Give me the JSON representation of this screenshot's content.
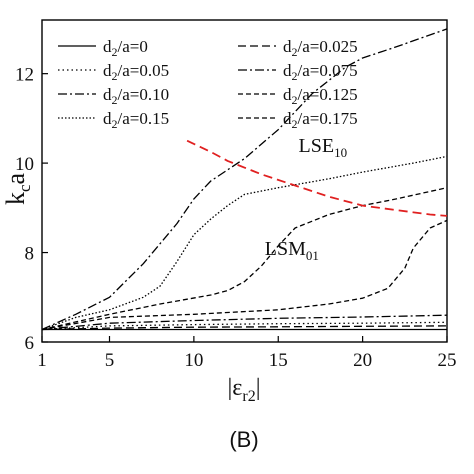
{
  "chart_data": {
    "type": "line",
    "panel_label": "(B)",
    "ylabel": {
      "main": "k",
      "sub": "c",
      "tail": "a"
    },
    "xlabel": {
      "main": "|ε",
      "sub": "r2",
      "tail": "|"
    },
    "xlim": [
      1,
      25
    ],
    "ylim": [
      6,
      13.2
    ],
    "xticks": [
      1,
      5,
      10,
      15,
      20,
      25
    ],
    "yticks": [
      6,
      8,
      10,
      12
    ],
    "grid": false,
    "legend_position": "top-left",
    "annotations": [
      {
        "main": "LSE",
        "sub": "10",
        "x": 16.2,
        "y": 10.25
      },
      {
        "main": "LSM",
        "sub": "01",
        "x": 14.2,
        "y": 7.95
      }
    ],
    "series": [
      {
        "name": "d2/a=0",
        "label": {
          "pre": "d",
          "sub": "2",
          "post": "/a=0"
        },
        "dash": "",
        "color": "#000000",
        "points": [
          [
            1,
            6.28
          ],
          [
            5,
            6.28
          ],
          [
            10,
            6.28
          ],
          [
            15,
            6.28
          ],
          [
            20,
            6.28
          ],
          [
            25,
            6.28
          ]
        ]
      },
      {
        "name": "d2/a=0.025",
        "label": {
          "pre": "d",
          "sub": "2",
          "post": "/a=0.025"
        },
        "dash": "8,4",
        "color": "#000000",
        "points": [
          [
            1,
            6.28
          ],
          [
            5,
            6.31
          ],
          [
            10,
            6.33
          ],
          [
            15,
            6.34
          ],
          [
            20,
            6.35
          ],
          [
            25,
            6.36
          ]
        ]
      },
      {
        "name": "d2/a=0.05",
        "label": {
          "pre": "d",
          "sub": "2",
          "post": "/a=0.05"
        },
        "dash": "1.5,3",
        "color": "#000000",
        "points": [
          [
            1,
            6.28
          ],
          [
            5,
            6.36
          ],
          [
            10,
            6.39
          ],
          [
            15,
            6.41
          ],
          [
            20,
            6.42
          ],
          [
            25,
            6.44
          ]
        ]
      },
      {
        "name": "d2/a=0.075",
        "label": {
          "pre": "d",
          "sub": "2",
          "post": "/a=0.075"
        },
        "dash": "9,3,2,3",
        "color": "#000000",
        "points": [
          [
            1,
            6.28
          ],
          [
            5,
            6.42
          ],
          [
            10,
            6.48
          ],
          [
            15,
            6.53
          ],
          [
            20,
            6.56
          ],
          [
            25,
            6.6
          ]
        ]
      },
      {
        "name": "d2/a=0.10",
        "label": {
          "pre": "d",
          "sub": "2",
          "post": "/a=0.10"
        },
        "dash": "9,3,2,3",
        "color": "#000000",
        "points": [
          [
            1,
            6.28
          ],
          [
            3,
            6.62
          ],
          [
            5,
            7.0
          ],
          [
            7,
            7.75
          ],
          [
            9,
            8.65
          ],
          [
            10,
            9.2
          ],
          [
            11,
            9.6
          ],
          [
            13,
            10.1
          ],
          [
            15,
            10.75
          ],
          [
            17,
            11.55
          ],
          [
            19,
            12.15
          ],
          [
            20,
            12.35
          ],
          [
            22,
            12.6
          ],
          [
            25,
            13.0
          ]
        ]
      },
      {
        "name": "d2/a=0.125",
        "label": {
          "pre": "d",
          "sub": "2",
          "post": "/a=0.125"
        },
        "dash": "5,3",
        "color": "#000000",
        "points": [
          [
            1,
            6.28
          ],
          [
            5,
            6.55
          ],
          [
            10,
            6.62
          ],
          [
            15,
            6.72
          ],
          [
            18,
            6.85
          ],
          [
            20,
            6.98
          ],
          [
            21.5,
            7.2
          ],
          [
            22.5,
            7.65
          ],
          [
            23,
            8.1
          ],
          [
            24,
            8.55
          ],
          [
            25,
            8.72
          ]
        ]
      },
      {
        "name": "d2/a=0.15",
        "label": {
          "pre": "d",
          "sub": "2",
          "post": "/a=0.15"
        },
        "dash": "1.5,2",
        "color": "#000000",
        "points": [
          [
            1,
            6.28
          ],
          [
            3,
            6.55
          ],
          [
            5,
            6.72
          ],
          [
            7,
            7.0
          ],
          [
            8,
            7.25
          ],
          [
            9,
            7.8
          ],
          [
            10,
            8.4
          ],
          [
            11,
            8.75
          ],
          [
            12,
            9.05
          ],
          [
            13,
            9.3
          ],
          [
            15,
            9.45
          ],
          [
            18,
            9.65
          ],
          [
            20,
            9.8
          ],
          [
            23,
            10.0
          ],
          [
            25,
            10.15
          ]
        ]
      },
      {
        "name": "d2/a=0.175",
        "label": {
          "pre": "d",
          "sub": "2",
          "post": "/a=0.175"
        },
        "dash": "5,3",
        "color": "#000000",
        "points": [
          [
            1,
            6.28
          ],
          [
            3,
            6.45
          ],
          [
            5,
            6.62
          ],
          [
            8,
            6.85
          ],
          [
            11,
            7.05
          ],
          [
            12,
            7.15
          ],
          [
            13,
            7.35
          ],
          [
            14,
            7.7
          ],
          [
            15,
            8.15
          ],
          [
            16,
            8.55
          ],
          [
            18,
            8.85
          ],
          [
            20,
            9.05
          ],
          [
            22,
            9.2
          ],
          [
            25,
            9.45
          ]
        ]
      },
      {
        "name": "",
        "label": null,
        "legend": false,
        "dash": "9,5",
        "color": "#e02020",
        "points": [
          [
            9.6,
            10.5
          ],
          [
            11,
            10.25
          ],
          [
            12,
            10.05
          ],
          [
            14,
            9.75
          ],
          [
            16,
            9.5
          ],
          [
            18,
            9.25
          ],
          [
            20,
            9.05
          ],
          [
            22,
            8.95
          ],
          [
            24,
            8.85
          ],
          [
            25,
            8.82
          ]
        ]
      }
    ]
  }
}
